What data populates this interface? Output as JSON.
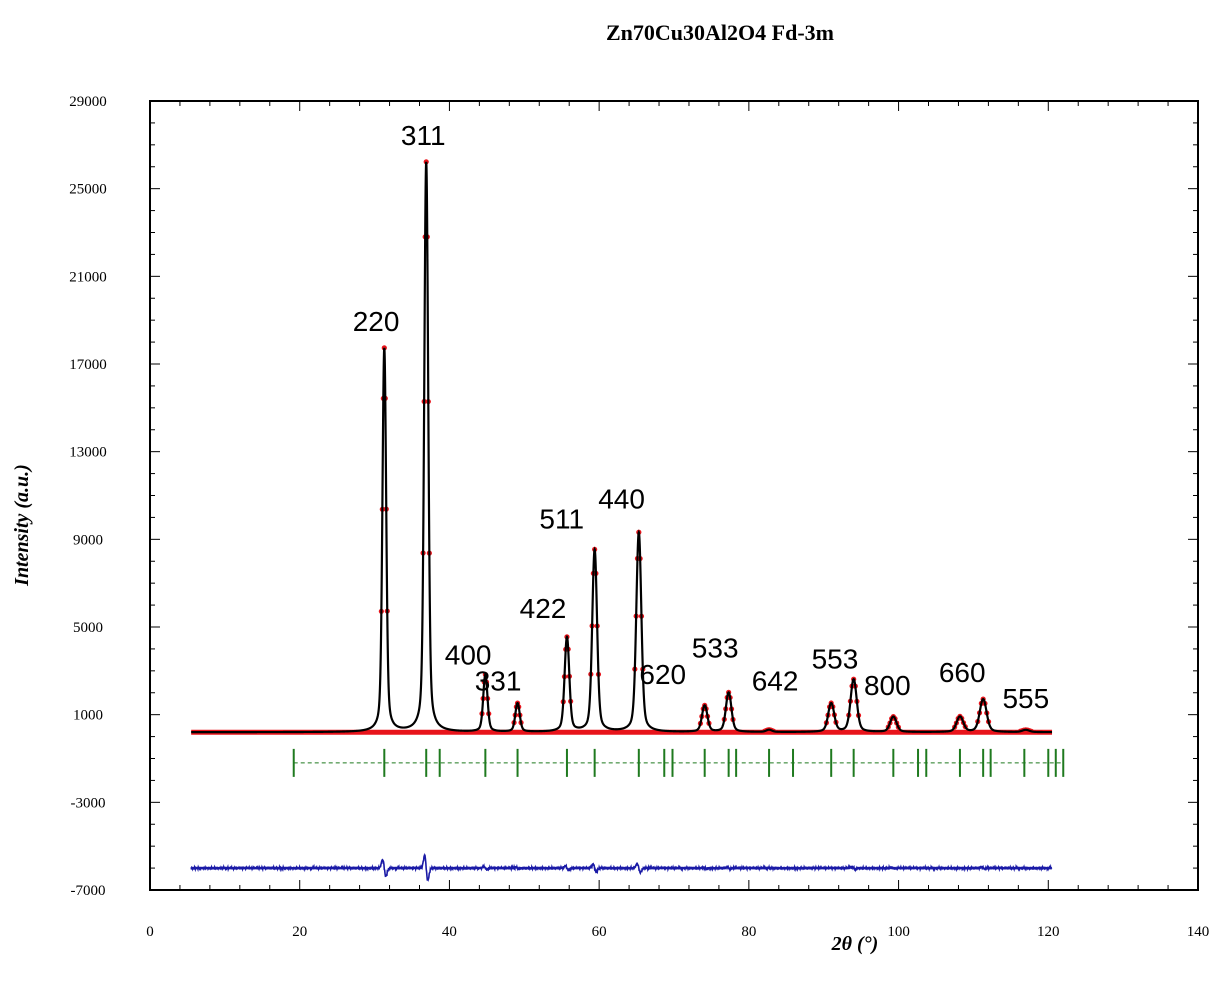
{
  "chart_data": {
    "type": "line",
    "title": "Zn70Cu30Al2O4 Fd-3m",
    "xlabel": "2θ (°)",
    "ylabel": "Intensity (a.u.)",
    "xlim": [
      0,
      140
    ],
    "ylim": [
      -7000,
      29000
    ],
    "x_ticks": [
      0,
      20,
      40,
      60,
      80,
      100,
      120,
      140
    ],
    "y_ticks": [
      -7000,
      -3000,
      1000,
      5000,
      9000,
      13000,
      17000,
      21000,
      25000,
      29000
    ],
    "colors": {
      "observed": "#e8141b",
      "calculated": "#000000",
      "bragg": "#1f7a1f",
      "difference": "#1a1aa6"
    },
    "baseline": 200,
    "bragg_level": -1200,
    "difference_level": -6000,
    "peaks": [
      {
        "hkl": "220",
        "x": 31.3,
        "y": 17700
      },
      {
        "hkl": "311",
        "x": 36.9,
        "y": 26200
      },
      {
        "hkl": "400",
        "x": 44.8,
        "y": 2800
      },
      {
        "hkl": "331",
        "x": 49.1,
        "y": 1500
      },
      {
        "hkl": "422",
        "x": 55.7,
        "y": 4500
      },
      {
        "hkl": "511",
        "x": 59.4,
        "y": 8500
      },
      {
        "hkl": "440",
        "x": 65.3,
        "y": 9300
      },
      {
        "hkl": "620",
        "x": 74.1,
        "y": 1400
      },
      {
        "hkl": "533",
        "x": 77.3,
        "y": 2000
      },
      {
        "hkl": "642",
        "x": 82.7,
        "y": 300
      },
      {
        "hkl": "553",
        "x": 94.0,
        "y": 2600
      },
      {
        "hkl": "800",
        "x": 99.3,
        "y": 900
      },
      {
        "hkl": "660",
        "x": 111.3,
        "y": 1700
      },
      {
        "hkl": "555",
        "x": 117.0,
        "y": 300
      }
    ],
    "minor_peaks": [
      {
        "x": 91.0,
        "y": 1500
      },
      {
        "x": 108.2,
        "y": 900
      }
    ],
    "labels": [
      {
        "text": "220",
        "x": 30.2,
        "y": 18500
      },
      {
        "text": "311",
        "x": 36.5,
        "y": 27000
      },
      {
        "text": "400",
        "x": 42.5,
        "y": 3300
      },
      {
        "text": "331",
        "x": 46.5,
        "y": 2100
      },
      {
        "text": "422",
        "x": 52.5,
        "y": 5400
      },
      {
        "text": "511",
        "x": 55.0,
        "y": 9500
      },
      {
        "text": "440",
        "x": 63.0,
        "y": 10400
      },
      {
        "text": "620",
        "x": 68.5,
        "y": 2400
      },
      {
        "text": "533",
        "x": 75.5,
        "y": 3600
      },
      {
        "text": "642",
        "x": 83.5,
        "y": 2100
      },
      {
        "text": "553",
        "x": 91.5,
        "y": 3100
      },
      {
        "text": "800",
        "x": 98.5,
        "y": 1900
      },
      {
        "text": "660",
        "x": 108.5,
        "y": 2500
      },
      {
        "text": "555",
        "x": 117.0,
        "y": 1300
      }
    ],
    "bragg_positions": [
      19.2,
      31.3,
      36.9,
      38.7,
      44.8,
      49.1,
      55.7,
      59.4,
      65.3,
      68.7,
      69.8,
      74.1,
      77.3,
      78.3,
      82.7,
      85.9,
      91.0,
      94.0,
      99.3,
      102.6,
      103.7,
      108.2,
      111.3,
      112.3,
      116.8,
      120.0,
      121.0,
      122.0
    ],
    "x_range": [
      5.5,
      120.5
    ]
  }
}
